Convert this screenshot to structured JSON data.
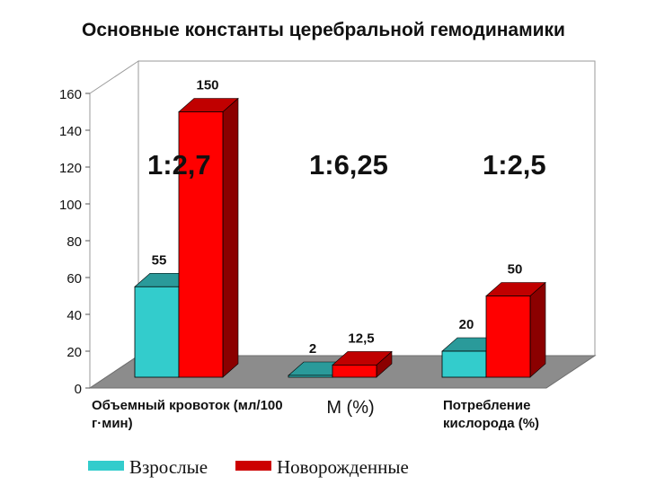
{
  "chart_data": {
    "type": "bar",
    "title": "Основные константы церебральной гемодинамики",
    "categories": [
      "Объемный кровоток (мл/100 г·мин)",
      "М (%)",
      "Потребление кислорода (%)"
    ],
    "series": [
      {
        "name": "Взрослые",
        "values": [
          55,
          2,
          20
        ],
        "labels": [
          "55",
          "2",
          "20"
        ],
        "color": "#33cccc"
      },
      {
        "name": "Новорожденные",
        "values": [
          150,
          12.5,
          50
        ],
        "labels": [
          "150",
          "12,5",
          "50"
        ],
        "color": "#ff0000"
      }
    ],
    "ratios": [
      "1:2,7",
      "1:6,25",
      "1:2,5"
    ],
    "yticks": [
      0,
      20,
      40,
      60,
      80,
      100,
      120,
      140,
      160
    ],
    "ylim": [
      0,
      160
    ],
    "legend": "bottom",
    "style": "3d"
  }
}
